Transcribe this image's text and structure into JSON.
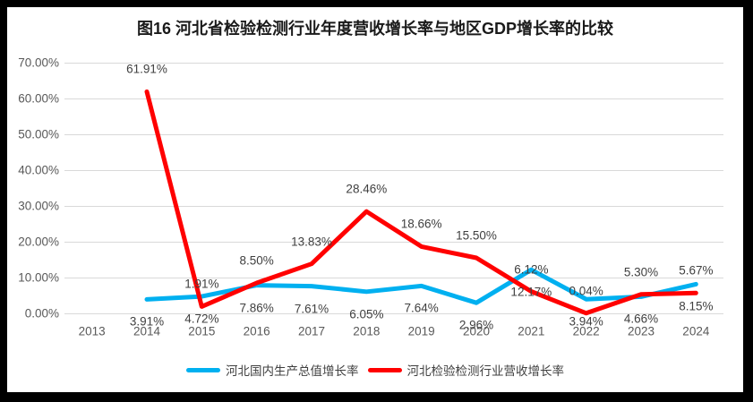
{
  "chart_data": {
    "type": "line",
    "title": "图16 河北省检验检测行业年度营收增长率与地区GDP增长率的比较",
    "categories": [
      "2013",
      "2014",
      "2015",
      "2016",
      "2017",
      "2018",
      "2019",
      "2020",
      "2021",
      "2022",
      "2023",
      "2024"
    ],
    "series": [
      {
        "key": "hebei-gdp-growth",
        "name": "河北国内生产总值增长率",
        "color": "#00B0F0",
        "label_position": "below",
        "values": [
          null,
          3.91,
          4.72,
          7.86,
          7.61,
          6.05,
          7.64,
          2.96,
          12.17,
          3.94,
          4.66,
          8.15
        ]
      },
      {
        "key": "hebei-testing-industry-revenue-growth",
        "name": "河北检验检测行业营收增长率",
        "color": "#FF0000",
        "label_position": "above",
        "values": [
          null,
          61.91,
          1.91,
          8.5,
          13.83,
          28.46,
          18.66,
          15.5,
          6.12,
          0.04,
          5.3,
          5.67
        ]
      }
    ],
    "ylim": [
      0,
      70
    ],
    "yticks": [
      0,
      10,
      20,
      30,
      40,
      50,
      60,
      70
    ],
    "ytick_labels": [
      "0.00%",
      "10.00%",
      "20.00%",
      "30.00%",
      "40.00%",
      "50.00%",
      "60.00%",
      "70.00%"
    ],
    "value_label_format": "percent-2dp",
    "grid": "horizontal",
    "legend_position": "bottom"
  },
  "style": {
    "frame_color": "#000000",
    "background_color": "#FFFFFF",
    "gridline_color": "#D9D9D9",
    "axis_text_color": "#595959",
    "data_label_color": "#404040",
    "title_color": "#1A1A1A"
  }
}
